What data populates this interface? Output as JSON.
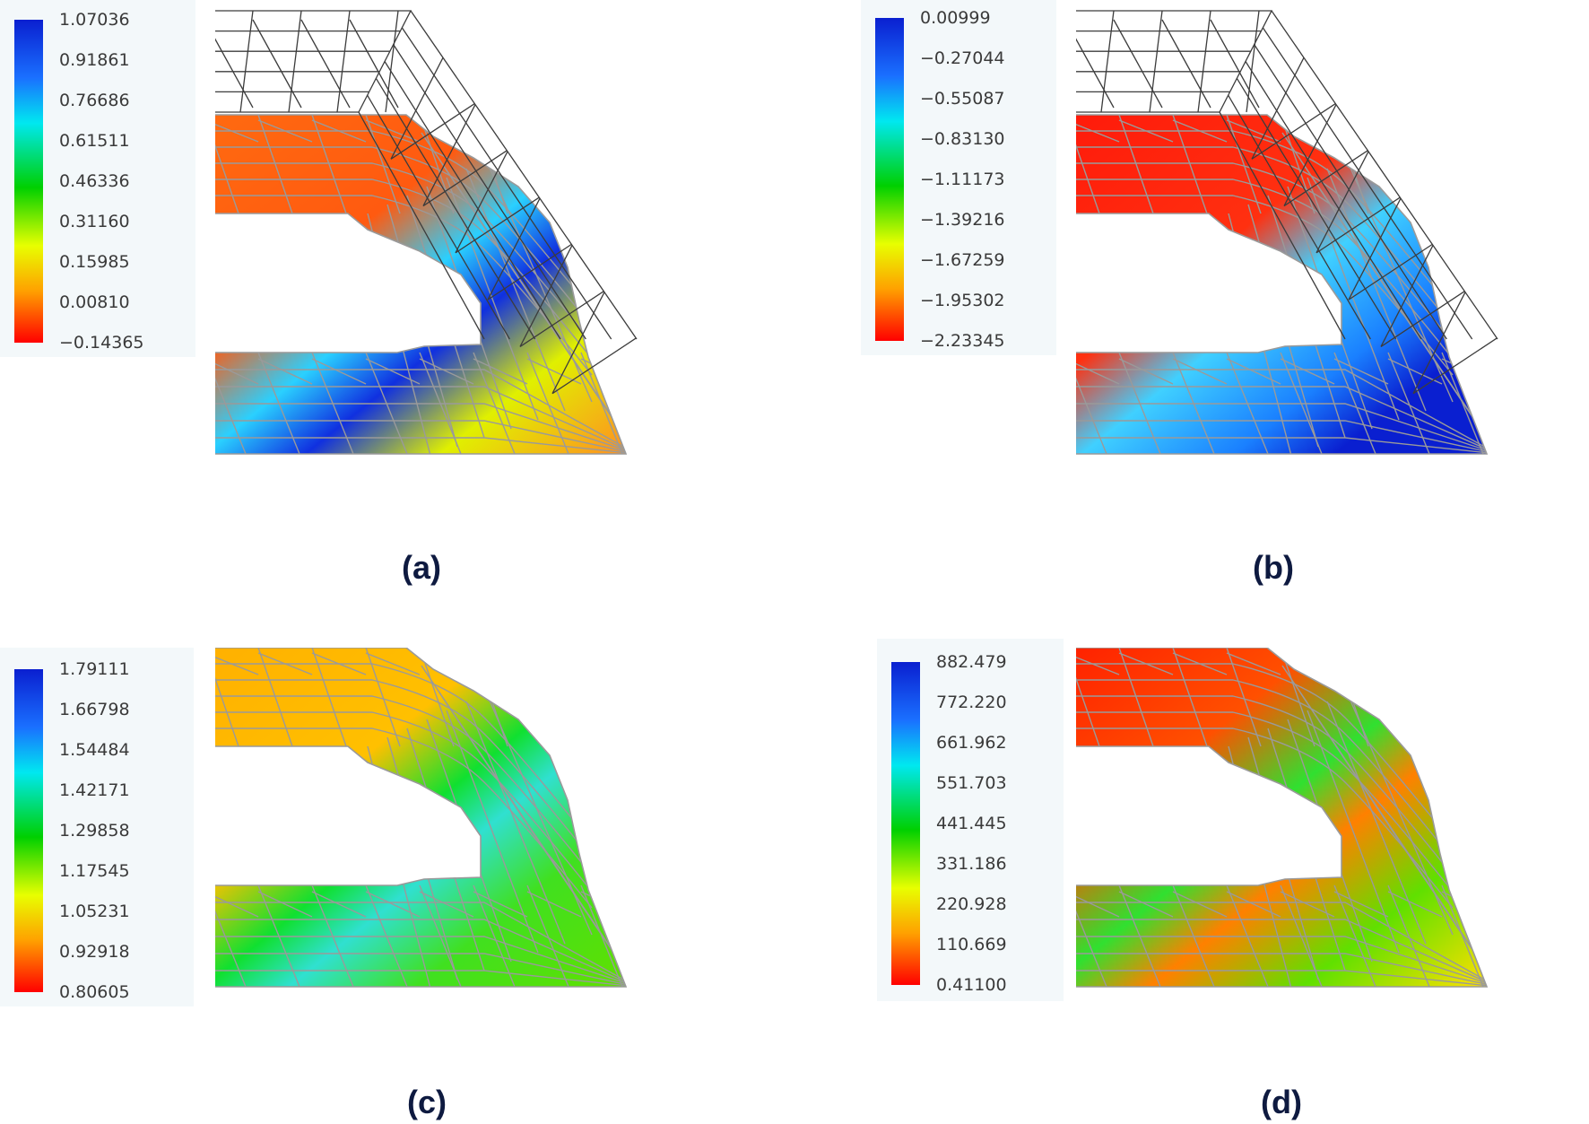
{
  "panels": [
    {
      "caption": "(a)",
      "legend_values": [
        "1.07036",
        "0.91861",
        "0.76686",
        "0.61511",
        "0.46336",
        "0.31160",
        "0.15985",
        "0.00810",
        "−0.14365"
      ],
      "shows_undeformed_mesh": true
    },
    {
      "caption": "(b)",
      "legend_values": [
        "0.00999",
        "−0.27044",
        "−0.55087",
        "−0.83130",
        "−1.11173",
        "−1.39216",
        "−1.67259",
        "−1.95302",
        "−2.23345"
      ],
      "shows_undeformed_mesh": true
    },
    {
      "caption": "(c)",
      "legend_values": [
        "1.79111",
        "1.66798",
        "1.54484",
        "1.42171",
        "1.29858",
        "1.17545",
        "1.05231",
        "0.92918",
        "0.80605"
      ],
      "shows_undeformed_mesh": false
    },
    {
      "caption": "(d)",
      "legend_values": [
        "882.479",
        "772.220",
        "661.962",
        "551.703",
        "441.445",
        "331.186",
        "220.928",
        "110.669",
        "0.41100"
      ],
      "shows_undeformed_mesh": false
    }
  ],
  "colors": {
    "scale_top": "#0a1fd0",
    "scale_mid": "#00d000",
    "scale_bottom": "#ff0000",
    "mesh_line": "#9a9a9a",
    "undeformed_mesh": "#3c3c3c",
    "caption": "#0e1a40"
  }
}
